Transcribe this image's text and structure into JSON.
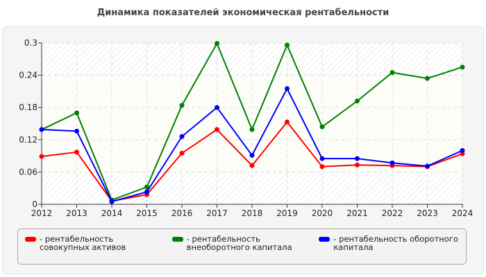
{
  "chart_data": {
    "type": "line",
    "title": "Динамика показателей экономическая рентабельности",
    "x": [
      2012,
      2013,
      2014,
      2015,
      2016,
      2017,
      2018,
      2019,
      2020,
      2021,
      2022,
      2023,
      2024
    ],
    "ylim": [
      0,
      0.3
    ],
    "yticks": [
      "0",
      "0.06",
      "0.12",
      "0.18",
      "0.24",
      "0.3"
    ],
    "grid": true,
    "legend_position": "bottom",
    "series": [
      {
        "name": "- рентабельность совокупных активов",
        "color": "#ff0000",
        "values": [
          0.089,
          0.097,
          0.006,
          0.018,
          0.095,
          0.139,
          0.072,
          0.153,
          0.07,
          0.073,
          0.072,
          0.07,
          0.094
        ]
      },
      {
        "name": "- рентабельность внеоборотного капитала",
        "color": "#008000",
        "values": [
          0.139,
          0.17,
          0.008,
          0.032,
          0.184,
          0.299,
          0.139,
          0.296,
          0.144,
          0.192,
          0.245,
          0.234,
          0.255
        ]
      },
      {
        "name": "- рентабельность оборотного капитала",
        "color": "#0000ff",
        "values": [
          0.139,
          0.136,
          0.005,
          0.023,
          0.126,
          0.18,
          0.091,
          0.215,
          0.085,
          0.085,
          0.077,
          0.071,
          0.1
        ]
      }
    ]
  }
}
